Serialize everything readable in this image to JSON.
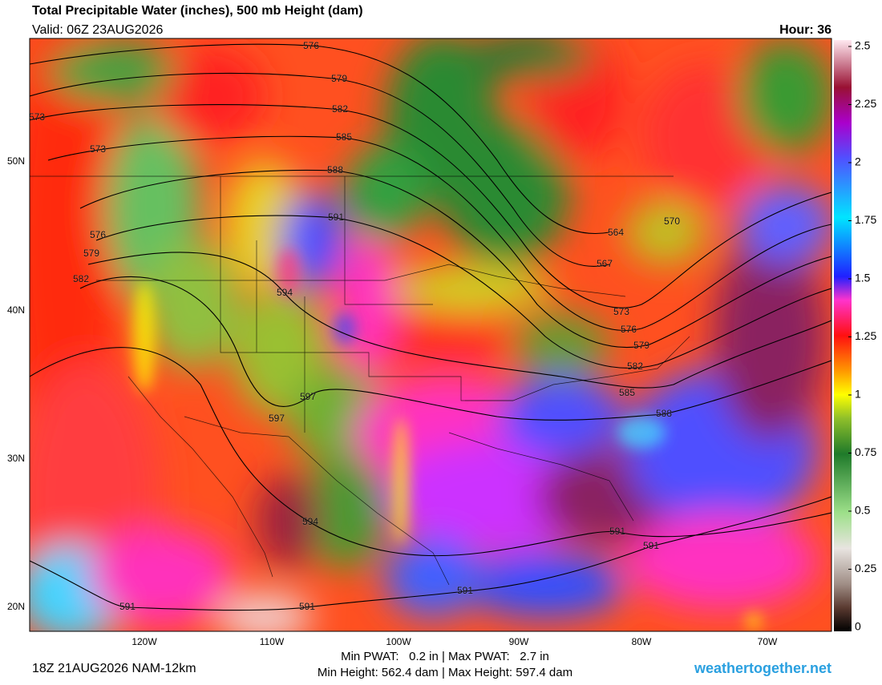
{
  "header": {
    "title": "Total Precipitable Water (inches), 500 mb Height (dam)",
    "valid": "Valid: 06Z 23AUG2026",
    "hour": "Hour: 36"
  },
  "colorbar": {
    "ticks": [
      2.5,
      2.25,
      2,
      1.75,
      1.5,
      1.25,
      1,
      0.75,
      0.5,
      0.25,
      0
    ]
  },
  "latitude_labels": [
    "50N",
    "40N",
    "30N",
    "20N"
  ],
  "longitude_labels": [
    "120W",
    "110W",
    "100W",
    "90W",
    "80W",
    "70W"
  ],
  "contours": [
    576,
    579,
    582,
    585,
    588,
    591,
    594,
    597,
    597,
    573,
    573,
    576,
    579,
    582,
    564,
    567,
    570,
    573,
    576,
    579,
    582,
    585,
    588,
    591,
    591,
    591,
    591,
    591,
    594
  ],
  "footer": {
    "run": "18Z 21AUG2026 NAM-12km",
    "pwat": "Min PWAT:   0.2 in | Max PWAT:   2.7 in",
    "height": "Min Height: 562.4 dam | Max Height: 597.4 dam",
    "site": "weathertogether.net"
  }
}
